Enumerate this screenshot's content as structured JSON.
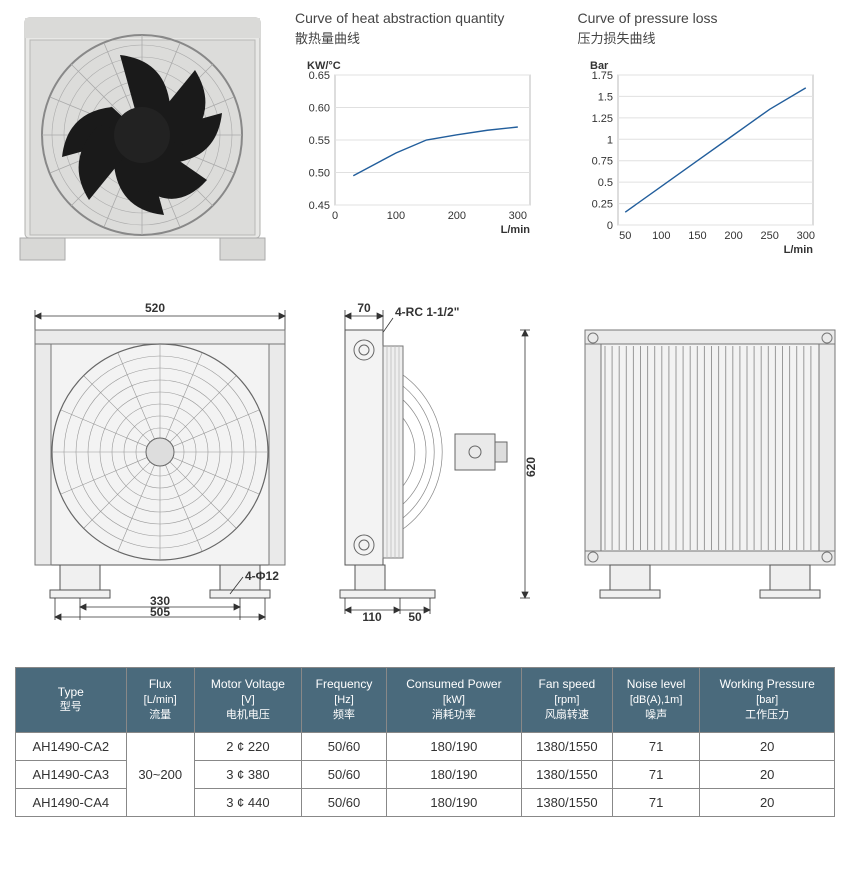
{
  "chart1": {
    "title_en": "Curve of heat abstraction quantity",
    "title_cn": "散热量曲线",
    "y_label": "KW/°C",
    "x_label": "L/min",
    "y_ticks": [
      "0.45",
      "0.50",
      "0.55",
      "0.60",
      "0.65"
    ],
    "y_range": [
      0.45,
      0.65
    ],
    "x_ticks": [
      "0",
      "100",
      "200",
      "300"
    ],
    "x_range": [
      0,
      320
    ],
    "points": [
      [
        30,
        0.495
      ],
      [
        60,
        0.51
      ],
      [
        100,
        0.53
      ],
      [
        150,
        0.55
      ],
      [
        200,
        0.558
      ],
      [
        250,
        0.565
      ],
      [
        300,
        0.57
      ]
    ],
    "line_color": "#225e9c",
    "grid_color": "#e0e0e0",
    "border_color": "#bbb"
  },
  "chart2": {
    "title_en": "Curve of pressure loss",
    "title_cn": "压力损失曲线",
    "y_label": "Bar",
    "x_label": "L/min",
    "y_ticks": [
      "0",
      "0.25",
      "0.5",
      "0.75",
      "1",
      "1.25",
      "1.5",
      "1.75"
    ],
    "y_range": [
      0,
      1.75
    ],
    "x_ticks": [
      "50",
      "100",
      "150",
      "200",
      "250",
      "300"
    ],
    "x_range": [
      40,
      310
    ],
    "points": [
      [
        50,
        0.15
      ],
      [
        100,
        0.45
      ],
      [
        150,
        0.75
      ],
      [
        200,
        1.05
      ],
      [
        250,
        1.35
      ],
      [
        300,
        1.6
      ]
    ],
    "line_color": "#225e9c",
    "grid_color": "#e0e0e0",
    "border_color": "#bbb"
  },
  "dimensions": {
    "width_top": "520",
    "side_top": "70",
    "port_spec": "4-RC 1-1/2\"",
    "height": "620",
    "hole_spec": "4-Φ12",
    "base1": "330",
    "base2": "505",
    "foot1": "110",
    "foot2": "50"
  },
  "table": {
    "headers": [
      {
        "en": "Type",
        "cn": "型号"
      },
      {
        "en": "Flux",
        "unit": "[L/min]",
        "cn": "流量"
      },
      {
        "en": "Motor Voltage",
        "unit": "[V]",
        "cn": "电机电压"
      },
      {
        "en": "Frequency",
        "unit": "[Hz]",
        "cn": "频率"
      },
      {
        "en": "Consumed Power",
        "unit": "[kW]",
        "cn": "消耗功率"
      },
      {
        "en": "Fan speed",
        "unit": "[rpm]",
        "cn": "风扇转速"
      },
      {
        "en": "Noise level",
        "unit": "[dB(A),1m]",
        "cn": "噪声"
      },
      {
        "en": "Working Pressure",
        "unit": "[bar]",
        "cn": "工作压力"
      }
    ],
    "flux_merged": "30~200",
    "rows": [
      [
        "AH1490-CA2",
        "2 ¢  220",
        "50/60",
        "180/190",
        "1380/1550",
        "71",
        "20"
      ],
      [
        "AH1490-CA3",
        "3 ¢  380",
        "50/60",
        "180/190",
        "1380/1550",
        "71",
        "20"
      ],
      [
        "AH1490-CA4",
        "3 ¢  440",
        "50/60",
        "180/190",
        "1380/1550",
        "71",
        "20"
      ]
    ]
  }
}
